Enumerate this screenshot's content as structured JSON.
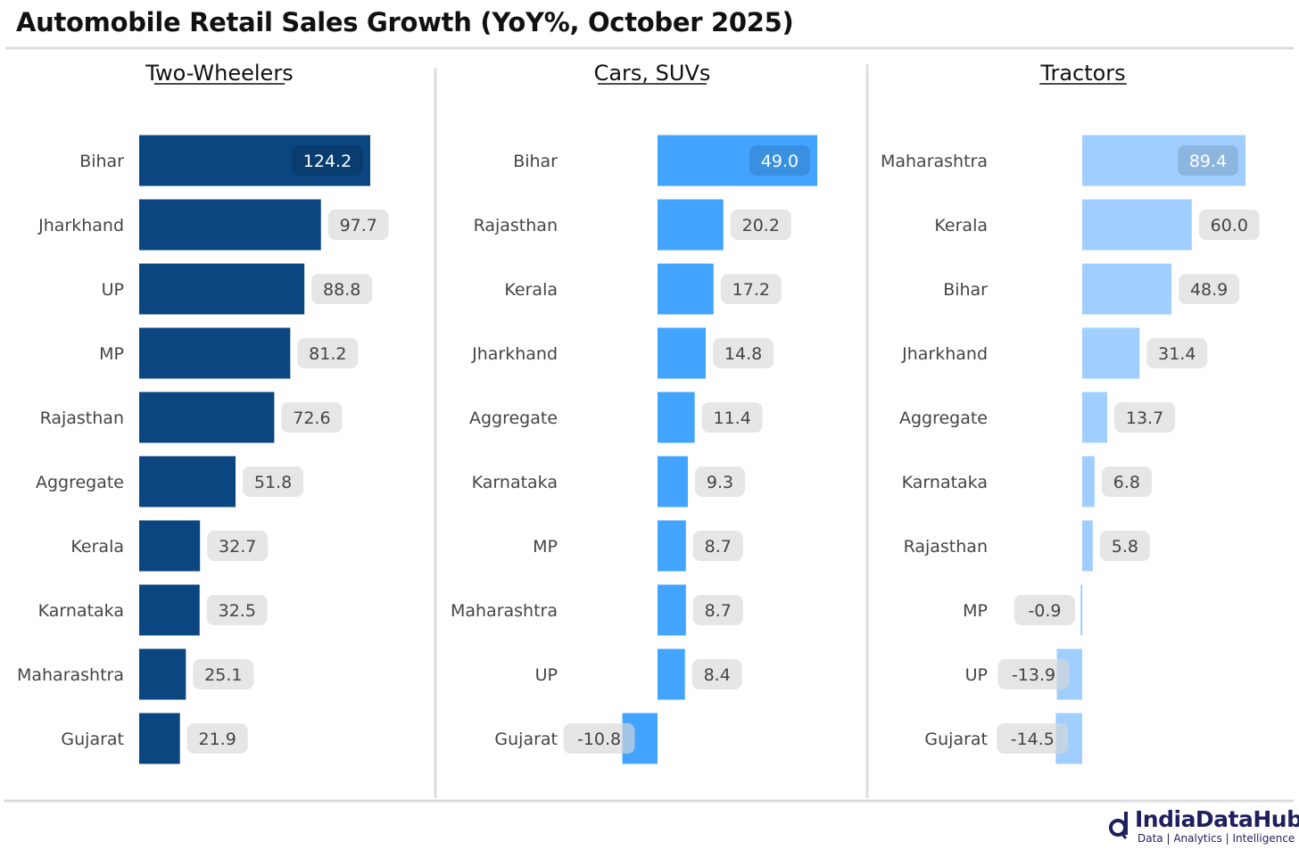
{
  "chart_data": [
    {
      "type": "bar",
      "orientation": "horizontal",
      "title": "Two-Wheelers",
      "color": "#0b4680",
      "categories": [
        "Bihar",
        "Jharkhand",
        "UP",
        "MP",
        "Rajasthan",
        "Aggregate",
        "Kerala",
        "Karnataka",
        "Maharashtra",
        "Gujarat"
      ],
      "values": [
        124.2,
        97.7,
        88.8,
        81.2,
        72.6,
        51.8,
        32.7,
        32.5,
        25.1,
        21.9
      ],
      "labels": [
        "124.2",
        "97.7",
        "88.8",
        "81.2",
        "72.6",
        "51.8",
        "32.7",
        "32.5",
        "25.1",
        "21.9"
      ],
      "xlim": [
        0,
        124.2
      ]
    },
    {
      "type": "bar",
      "orientation": "horizontal",
      "title": "Cars, SUVs",
      "color": "#42a4ff",
      "categories": [
        "Bihar",
        "Rajasthan",
        "Kerala",
        "Jharkhand",
        "Aggregate",
        "Karnataka",
        "MP",
        "Maharashtra",
        "UP",
        "Gujarat"
      ],
      "values": [
        49.0,
        20.2,
        17.2,
        14.8,
        11.4,
        9.3,
        8.7,
        8.7,
        8.4,
        -10.8
      ],
      "labels": [
        "49.0",
        "20.2",
        "17.2",
        "14.8",
        "11.4",
        "9.3",
        "8.7",
        "8.7",
        "8.4",
        "-10.8"
      ],
      "xlim": [
        -10.8,
        49.0
      ]
    },
    {
      "type": "bar",
      "orientation": "horizontal",
      "title": "Tractors",
      "color": "#a0cfff",
      "categories": [
        "Maharashtra",
        "Kerala",
        "Bihar",
        "Jharkhand",
        "Aggregate",
        "Karnataka",
        "Rajasthan",
        "MP",
        "UP",
        "Gujarat"
      ],
      "values": [
        89.4,
        60.0,
        48.9,
        31.4,
        13.7,
        6.8,
        5.8,
        -0.9,
        -13.9,
        -14.5
      ],
      "labels": [
        "89.4",
        "60.0",
        "48.9",
        "31.4",
        "13.7",
        "6.8",
        "5.8",
        "-0.9",
        "-13.9",
        "-14.5"
      ],
      "xlim": [
        -14.5,
        89.4
      ]
    }
  ],
  "header": {
    "title": "Automobile Retail Sales Growth (YoY%, October 2025)"
  },
  "footer": {
    "logo_name": "IndiaDataHub",
    "logo_tagline": "Data | Analytics | Intelligence"
  }
}
